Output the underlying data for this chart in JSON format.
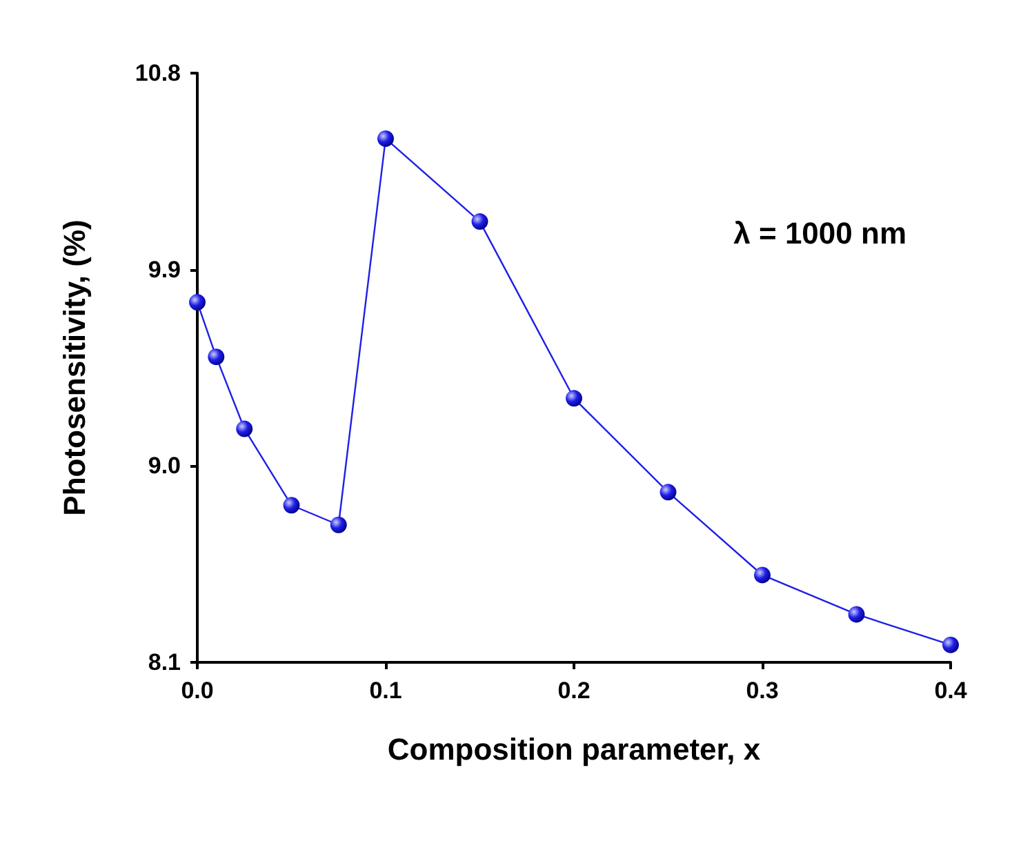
{
  "chart_data": {
    "type": "line",
    "xlabel": "Composition parameter, x",
    "ylabel": "Photosensitivity, (%)",
    "x": [
      0,
      0.01,
      0.025,
      0.05,
      0.075,
      0.1,
      0.15,
      0.2,
      0.25,
      0.3,
      0.35,
      0.4
    ],
    "series": [
      {
        "color": "#1f1fe6",
        "values": [
          9.75,
          9.5,
          9.17,
          8.82,
          8.73,
          10.5,
          10.12,
          9.31,
          8.88,
          8.5,
          8.32,
          8.18
        ]
      }
    ],
    "xlim": [
      0,
      0.4
    ],
    "ylim": [
      8.1,
      10.8
    ],
    "xticks": [
      {
        "value": 0,
        "label": "0.0"
      },
      0.1,
      0.2,
      0.3,
      0.4
    ],
    "yticks": [
      8.1,
      {
        "value": 9,
        "label": "9.0"
      },
      9.9,
      10.8
    ],
    "annotations": [
      "λ = 1000 nm"
    ],
    "marker": "circle",
    "line_style": "solid"
  }
}
